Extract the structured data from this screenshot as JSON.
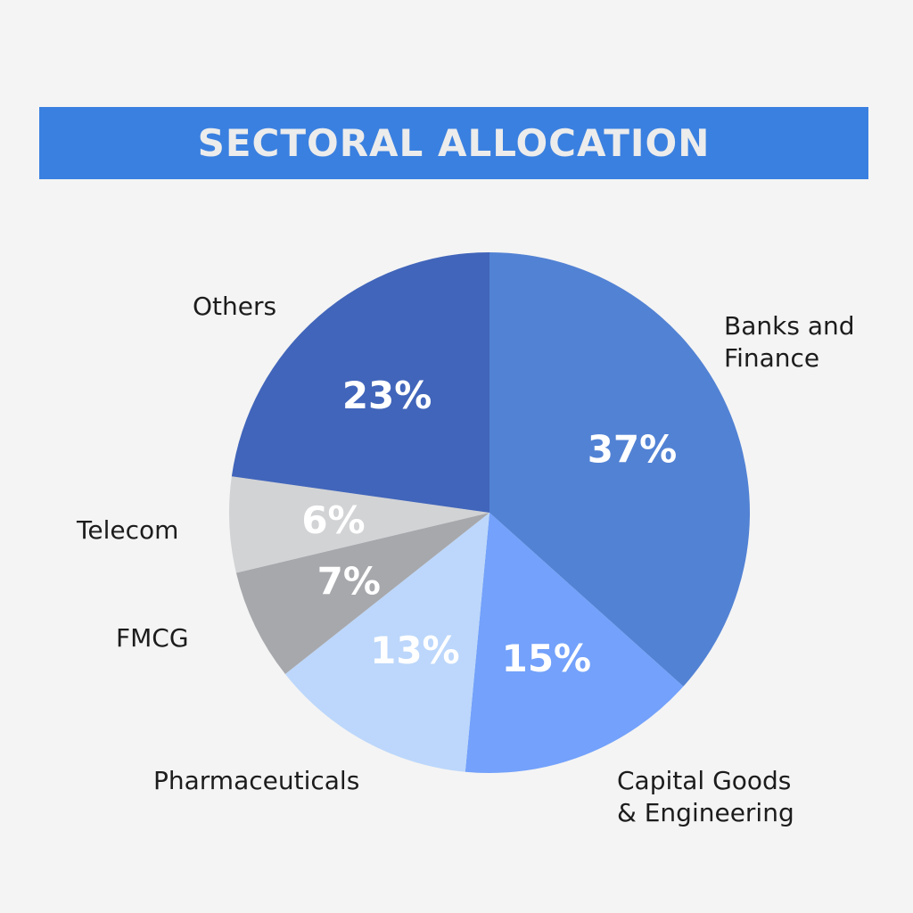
{
  "chart_data": {
    "type": "pie",
    "title": "SECTORAL ALLOCATION",
    "slices": [
      {
        "label": "Banks and Finance",
        "value": 37,
        "value_label": "37%",
        "color": "#5282d4"
      },
      {
        "label": "Capital Goods & Engineering",
        "value": 15,
        "value_label": "15%",
        "color": "#73a1fb"
      },
      {
        "label": "Pharmaceuticals",
        "value": 13,
        "value_label": "13%",
        "color": "#bcd7fb"
      },
      {
        "label": "FMCG",
        "value": 7,
        "value_label": "7%",
        "color": "#a7a8ac"
      },
      {
        "label": "Telecom",
        "value": 6,
        "value_label": "6%",
        "color": "#d2d3d5"
      },
      {
        "label": "Others",
        "value": 23,
        "value_label": "23%",
        "color": "#4165ba"
      }
    ],
    "legend": "none"
  },
  "colors": {
    "background": "#f4f4f4",
    "title_bar": "#3a80e0",
    "title_text": "#ececec"
  }
}
